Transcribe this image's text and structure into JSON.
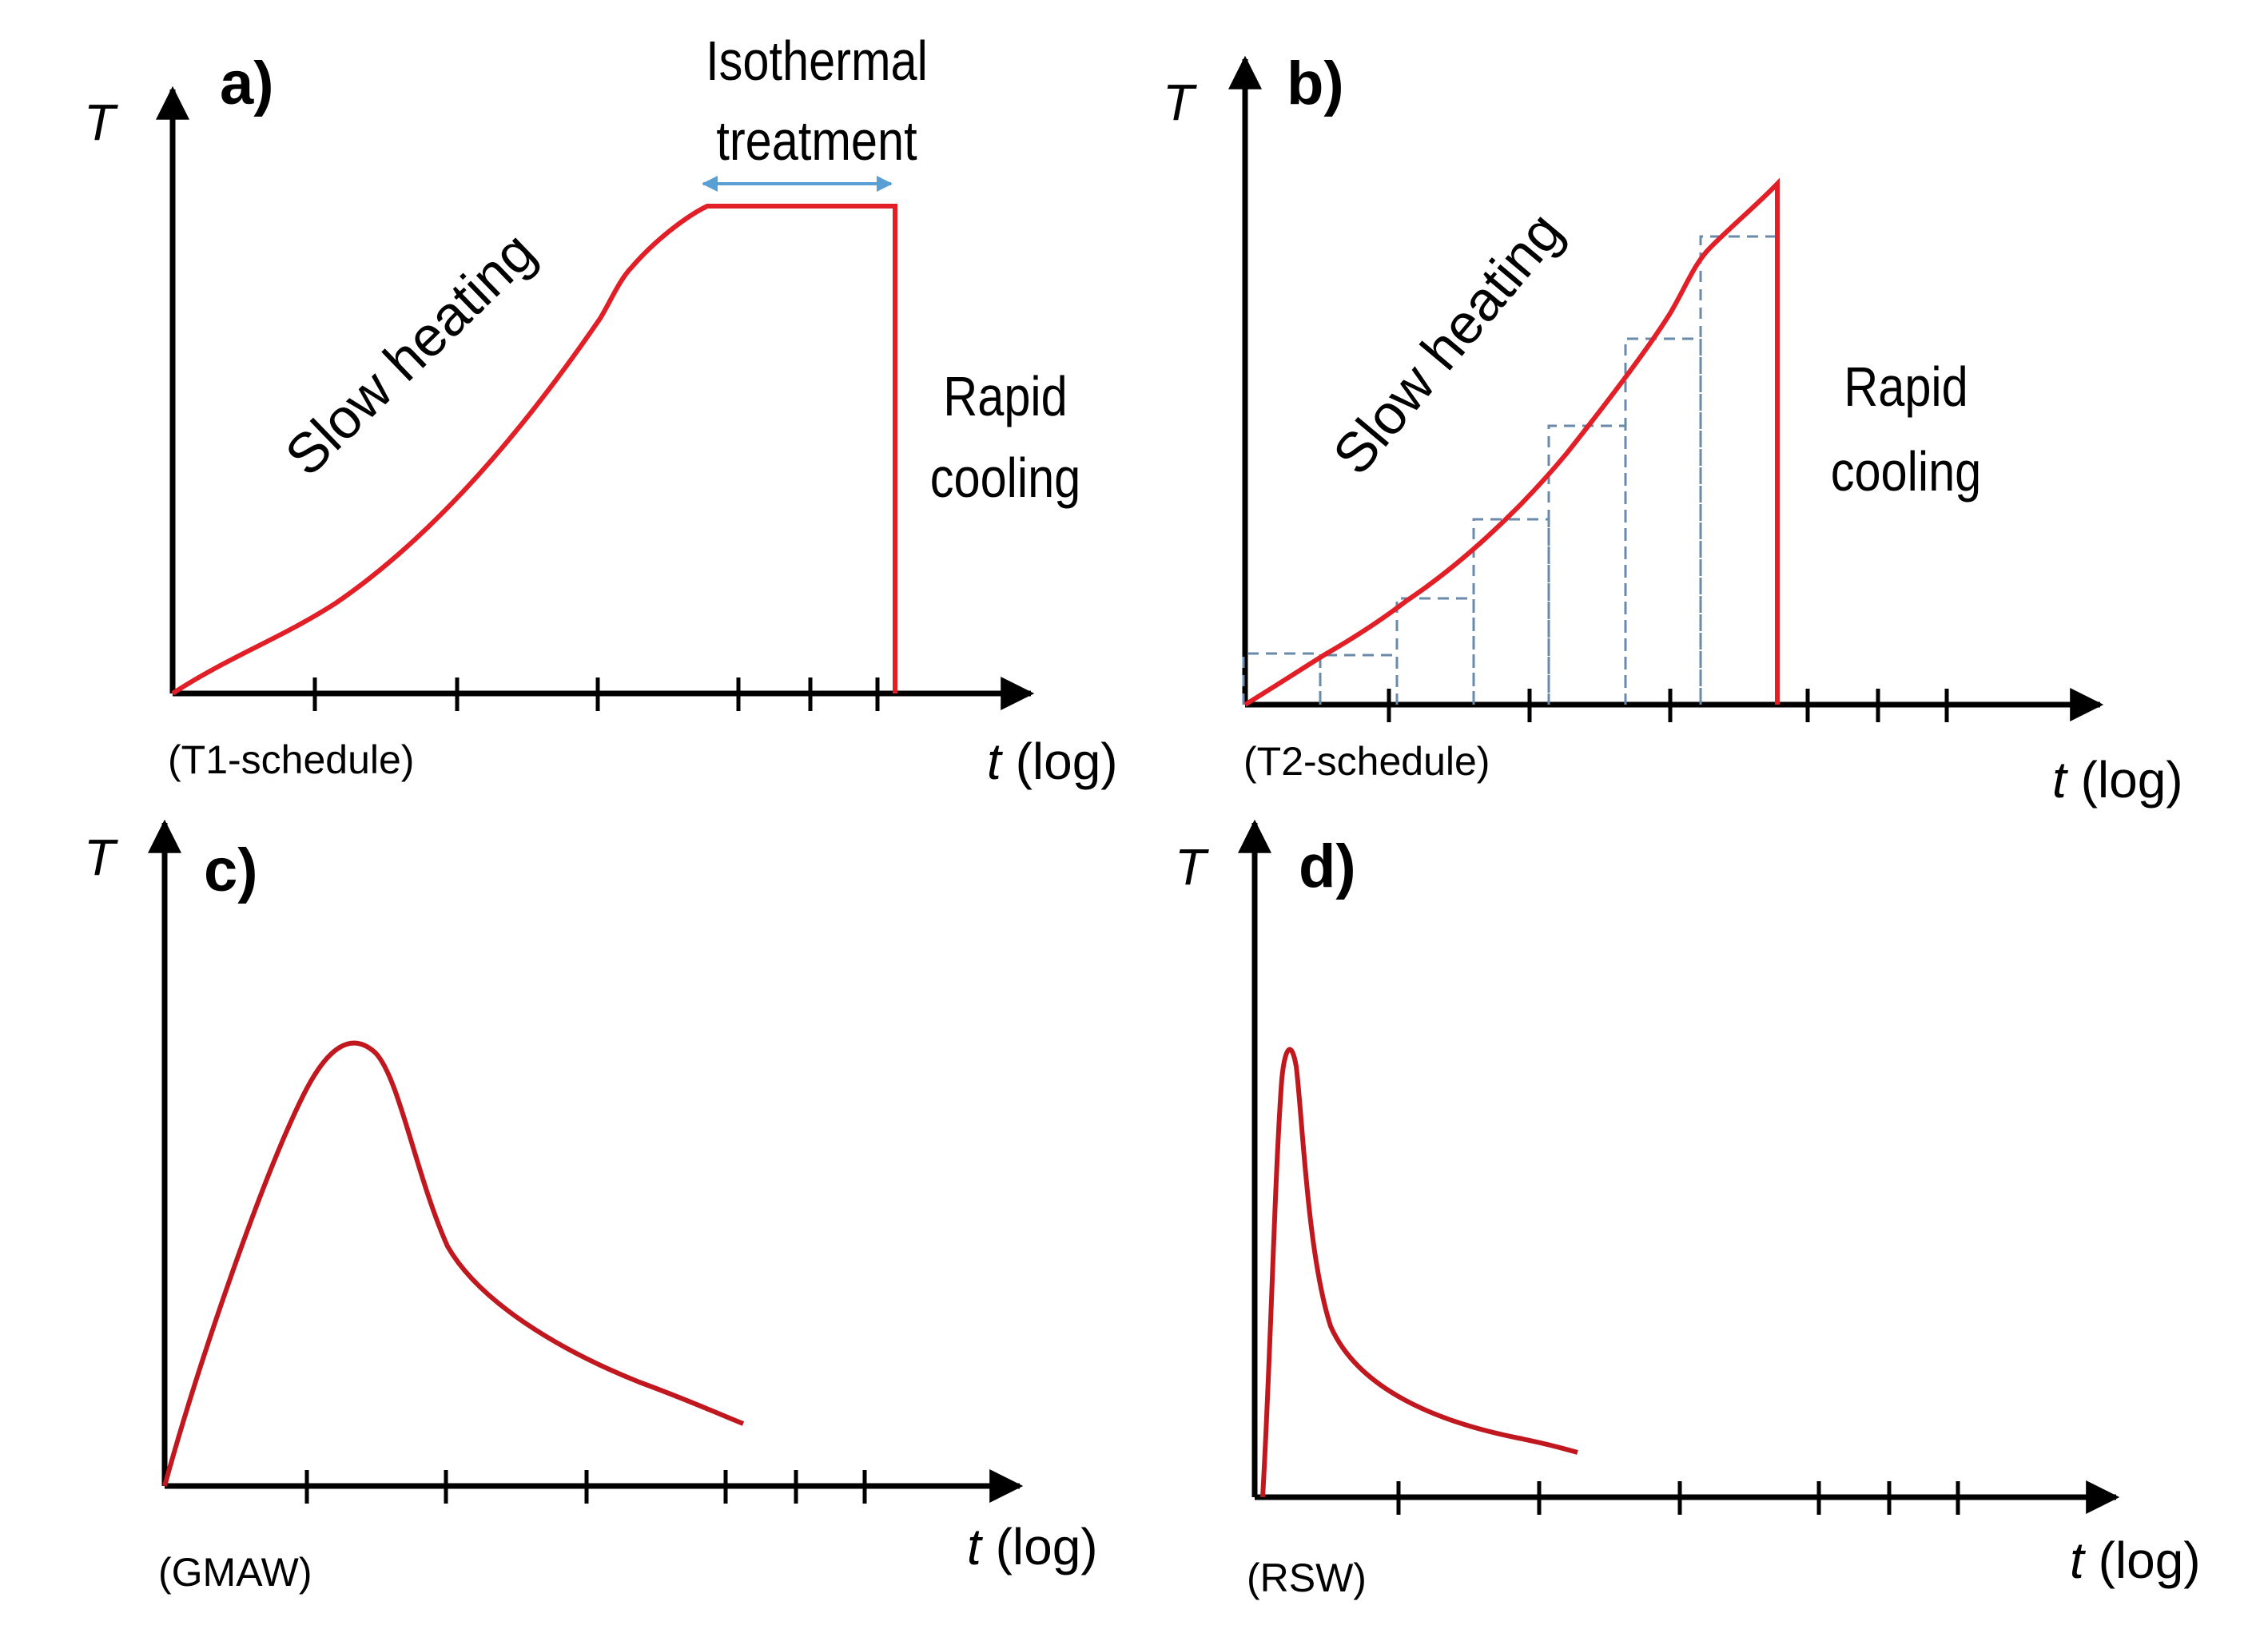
{
  "figure": {
    "panels": [
      {
        "id": "a",
        "panel_label": "a)",
        "y_axis_label": "T",
        "x_axis_label_t": "t",
        "x_axis_label_log": " (log)",
        "schedule_label": "(T1-schedule)",
        "annotations": {
          "isothermal_line1": "Isothermal",
          "isothermal_line2": "treatment",
          "slow_heating": "Slow heating",
          "rapid_cooling_line1": "Rapid",
          "rapid_cooling_line2": "cooling"
        }
      },
      {
        "id": "b",
        "panel_label": "b)",
        "y_axis_label": "T",
        "x_axis_label_t": "t",
        "x_axis_label_log": " (log)",
        "schedule_label": "(T2-schedule)",
        "annotations": {
          "slow_heating": "Slow heating",
          "rapid_cooling_line1": "Rapid",
          "rapid_cooling_line2": "cooling"
        }
      },
      {
        "id": "c",
        "panel_label": "c)",
        "y_axis_label": "T",
        "x_axis_label_t": "t",
        "x_axis_label_log": " (log)",
        "schedule_label": "(GMAW)"
      },
      {
        "id": "d",
        "panel_label": "d)",
        "y_axis_label": "T",
        "x_axis_label_t": "t",
        "x_axis_label_log": " (log)",
        "schedule_label": "(RSW)"
      }
    ],
    "colors": {
      "axis": "#000000",
      "curve_ab": "#e21e26",
      "curve_cd": "#c0181e",
      "step_dash": "#6a8aaa",
      "isothermal_arrow": "#5a9fd4"
    }
  }
}
